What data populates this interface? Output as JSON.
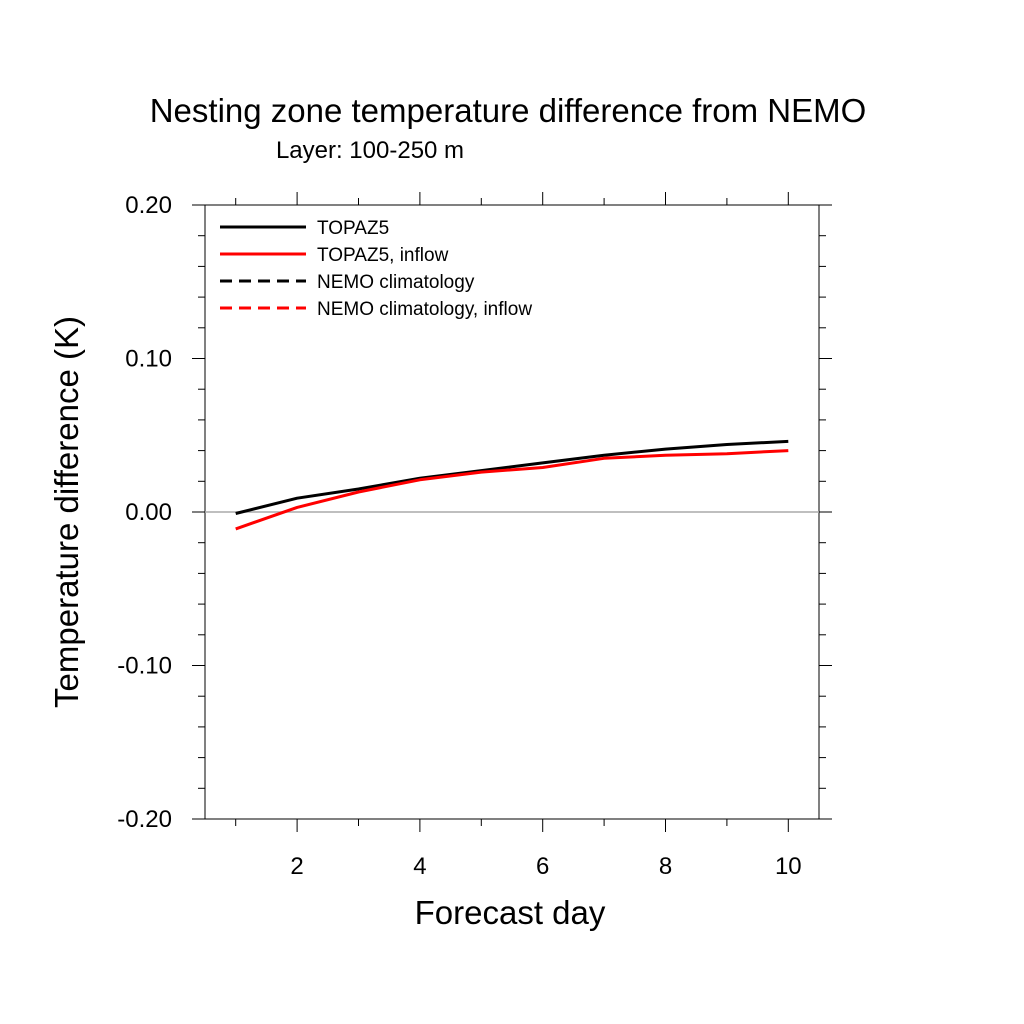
{
  "chart_data": {
    "type": "line",
    "title": "Nesting zone temperature difference from NEMO",
    "subtitle": "Layer: 100-250 m",
    "xlabel": "Forecast day",
    "ylabel": "Temperature difference (K)",
    "xlim": [
      0.5,
      10.5
    ],
    "ylim": [
      -0.2,
      0.2
    ],
    "x_ticks": [
      2,
      4,
      6,
      8,
      10
    ],
    "x_tick_labels": [
      "2",
      "4",
      "6",
      "8",
      "10"
    ],
    "y_ticks": [
      -0.2,
      -0.1,
      0.0,
      0.1,
      0.2
    ],
    "y_tick_labels": [
      "-0.20",
      "-0.10",
      "0.00",
      "0.10",
      "0.20"
    ],
    "zero_line": true,
    "legend_position": "top-left",
    "series": [
      {
        "name": "TOPAZ5",
        "color": "#000000",
        "dash": "solid",
        "x": [
          1,
          2,
          3,
          4,
          5,
          6,
          7,
          8,
          9,
          10
        ],
        "y": [
          -0.001,
          0.009,
          0.015,
          0.022,
          0.027,
          0.032,
          0.037,
          0.041,
          0.044,
          0.046
        ]
      },
      {
        "name": "TOPAZ5, inflow",
        "color": "#ff0000",
        "dash": "solid",
        "x": [
          1,
          2,
          3,
          4,
          5,
          6,
          7,
          8,
          9,
          10
        ],
        "y": [
          -0.011,
          0.003,
          0.013,
          0.021,
          0.026,
          0.029,
          0.035,
          0.037,
          0.038,
          0.04
        ]
      },
      {
        "name": "NEMO climatology",
        "color": "#000000",
        "dash": "dashed",
        "x": [],
        "y": []
      },
      {
        "name": "NEMO climatology, inflow",
        "color": "#ff0000",
        "dash": "dashed",
        "x": [],
        "y": []
      }
    ]
  }
}
